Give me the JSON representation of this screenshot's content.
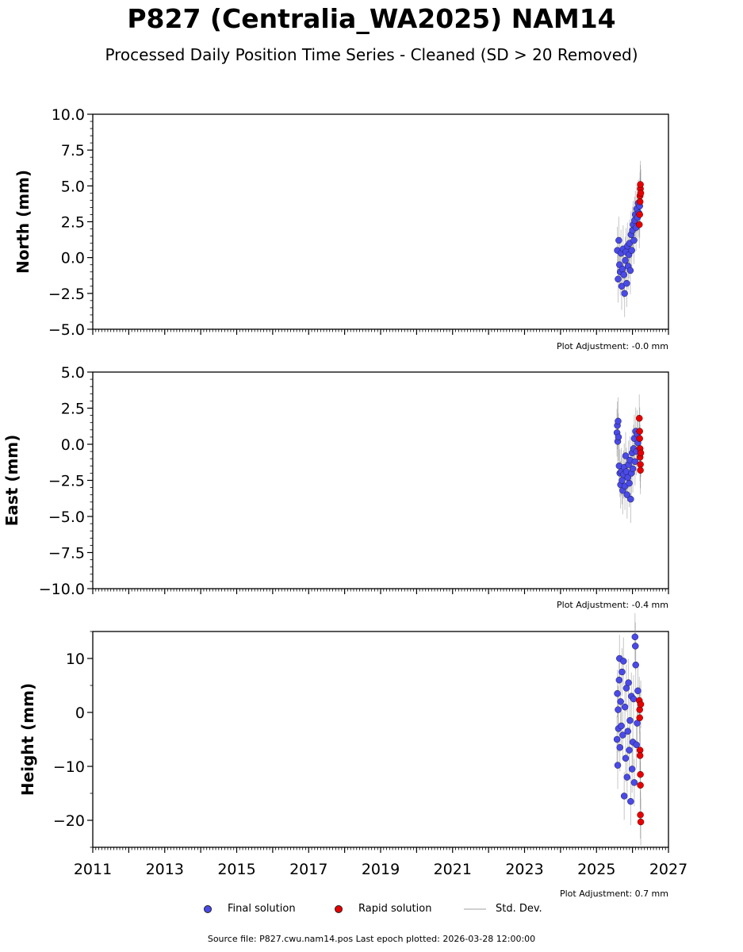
{
  "title": "P827 (Centralia_WA2025) NAM14",
  "subtitle": "Processed Daily Position Time Series - Cleaned (SD > 20 Removed)",
  "legend": {
    "final": "Final solution",
    "rapid": "Rapid solution",
    "std": "Std. Dev."
  },
  "footer": "Source file: P827.cwu.nam14.pos  Last epoch plotted: 2026-03-28 12:00:00",
  "colors": {
    "final": "#4a4ae8",
    "rapid": "#e80000",
    "std": "#808080"
  },
  "chart_data": [
    {
      "type": "scatter",
      "ylabel": "North (mm)",
      "adjustment": "Plot Adjustment: -0.0 mm",
      "xlim": [
        2011,
        2027
      ],
      "ylim": [
        -5,
        10
      ],
      "yticks": [
        -5.0,
        -2.5,
        0.0,
        2.5,
        5.0,
        7.5,
        10.0
      ],
      "ytick_labels": [
        "−5.0",
        "−2.5",
        "0.0",
        "2.5",
        "5.0",
        "7.5",
        "10.0"
      ],
      "yminor_step": 0.5,
      "final": [
        [
          2025.58,
          0.5
        ],
        [
          2025.6,
          -1.5
        ],
        [
          2025.62,
          1.2
        ],
        [
          2025.64,
          -0.5
        ],
        [
          2025.66,
          -1.0
        ],
        [
          2025.68,
          0.3
        ],
        [
          2025.7,
          -2.0
        ],
        [
          2025.72,
          -0.8
        ],
        [
          2025.74,
          0.6
        ],
        [
          2025.76,
          -1.2
        ],
        [
          2025.78,
          -2.5
        ],
        [
          2025.8,
          -0.2
        ],
        [
          2025.82,
          0.4
        ],
        [
          2025.84,
          -1.8
        ],
        [
          2025.86,
          0.8
        ],
        [
          2025.88,
          -0.6
        ],
        [
          2025.9,
          0.2
        ],
        [
          2025.92,
          1.0
        ],
        [
          2025.94,
          -0.9
        ],
        [
          2025.96,
          1.6
        ],
        [
          2025.98,
          0.5
        ],
        [
          2026.0,
          1.9
        ],
        [
          2026.02,
          2.3
        ],
        [
          2026.04,
          1.2
        ],
        [
          2026.06,
          2.6
        ],
        [
          2026.08,
          3.0
        ],
        [
          2026.1,
          2.1
        ],
        [
          2026.12,
          3.4
        ],
        [
          2026.14,
          2.8
        ],
        [
          2026.16,
          3.8
        ],
        [
          2026.18,
          3.1
        ],
        [
          2026.2,
          3.6
        ]
      ],
      "rapid": [
        [
          2026.19,
          2.3
        ],
        [
          2026.2,
          3.0
        ],
        [
          2026.21,
          3.9
        ],
        [
          2026.21,
          4.3
        ],
        [
          2026.22,
          4.8
        ],
        [
          2026.22,
          5.1
        ],
        [
          2026.23,
          4.5
        ]
      ]
    },
    {
      "type": "scatter",
      "ylabel": "East (mm)",
      "adjustment": "Plot Adjustment: -0.4 mm",
      "xlim": [
        2011,
        2027
      ],
      "ylim": [
        -10,
        5
      ],
      "yticks": [
        -10.0,
        -7.5,
        -5.0,
        -2.5,
        0.0,
        2.5,
        5.0
      ],
      "ytick_labels": [
        "−10.0",
        "−7.5",
        "−5.0",
        "−2.5",
        "0.0",
        "2.5",
        "5.0"
      ],
      "yminor_step": 0.5,
      "final": [
        [
          2025.57,
          0.8
        ],
        [
          2025.58,
          1.3
        ],
        [
          2025.59,
          0.2
        ],
        [
          2025.6,
          1.6
        ],
        [
          2025.61,
          0.5
        ],
        [
          2025.63,
          -1.5
        ],
        [
          2025.65,
          -2.0
        ],
        [
          2025.67,
          -2.8
        ],
        [
          2025.69,
          -1.9
        ],
        [
          2025.71,
          -2.5
        ],
        [
          2025.73,
          -3.2
        ],
        [
          2025.75,
          -2.1
        ],
        [
          2025.77,
          -1.6
        ],
        [
          2025.79,
          -2.9
        ],
        [
          2025.81,
          -0.8
        ],
        [
          2025.83,
          -1.9
        ],
        [
          2025.85,
          -3.5
        ],
        [
          2025.87,
          -2.3
        ],
        [
          2025.89,
          -1.4
        ],
        [
          2025.91,
          -2.7
        ],
        [
          2025.93,
          -1.1
        ],
        [
          2025.95,
          -3.8
        ],
        [
          2025.97,
          -2.0
        ],
        [
          2025.99,
          -0.6
        ],
        [
          2026.01,
          -1.7
        ],
        [
          2026.03,
          -0.3
        ],
        [
          2026.05,
          0.4
        ],
        [
          2026.07,
          -1.2
        ],
        [
          2026.09,
          0.9
        ],
        [
          2026.11,
          -0.5
        ],
        [
          2026.13,
          0.7
        ],
        [
          2026.15,
          0.1
        ]
      ],
      "rapid": [
        [
          2026.19,
          1.8
        ],
        [
          2026.2,
          0.9
        ],
        [
          2026.2,
          0.4
        ],
        [
          2026.21,
          -0.3
        ],
        [
          2026.21,
          -0.9
        ],
        [
          2026.22,
          -1.4
        ],
        [
          2026.22,
          -1.8
        ],
        [
          2026.23,
          -0.6
        ]
      ]
    },
    {
      "type": "scatter",
      "ylabel": "Height (mm)",
      "adjustment": "Plot Adjustment: 0.7 mm",
      "xlim": [
        2011,
        2027
      ],
      "ylim": [
        -25,
        15
      ],
      "yticks": [
        -20,
        -10,
        0,
        10
      ],
      "ytick_labels": [
        "−20",
        "−10",
        "0",
        "10"
      ],
      "yminor_step": 5,
      "xticks": [
        2011,
        2013,
        2015,
        2017,
        2019,
        2021,
        2023,
        2025,
        2027
      ],
      "xtick_labels": [
        "2011",
        "2013",
        "2015",
        "2017",
        "2019",
        "2021",
        "2023",
        "2025",
        "2027"
      ],
      "final": [
        [
          2025.57,
          -5.0
        ],
        [
          2025.58,
          3.5
        ],
        [
          2025.59,
          -9.8
        ],
        [
          2025.6,
          0.5
        ],
        [
          2025.61,
          -3.0
        ],
        [
          2025.63,
          6.0
        ],
        [
          2025.64,
          10.0
        ],
        [
          2025.65,
          -6.5
        ],
        [
          2025.67,
          2.0
        ],
        [
          2025.69,
          -2.5
        ],
        [
          2025.71,
          7.5
        ],
        [
          2025.73,
          -4.2
        ],
        [
          2025.75,
          9.5
        ],
        [
          2025.77,
          -15.5
        ],
        [
          2025.79,
          1.0
        ],
        [
          2025.81,
          -8.5
        ],
        [
          2025.83,
          4.5
        ],
        [
          2025.85,
          -12.0
        ],
        [
          2025.87,
          -3.5
        ],
        [
          2025.89,
          5.5
        ],
        [
          2025.91,
          -7.0
        ],
        [
          2025.93,
          -1.5
        ],
        [
          2025.95,
          -16.5
        ],
        [
          2025.97,
          3.0
        ],
        [
          2025.99,
          -10.5
        ],
        [
          2026.01,
          -5.5
        ],
        [
          2026.03,
          2.5
        ],
        [
          2026.05,
          -13.0
        ],
        [
          2026.07,
          14.0
        ],
        [
          2026.08,
          12.3
        ],
        [
          2026.09,
          8.8
        ],
        [
          2026.11,
          -6.0
        ],
        [
          2026.13,
          -2.0
        ],
        [
          2026.15,
          4.0
        ]
      ],
      "rapid": [
        [
          2026.19,
          2.2
        ],
        [
          2026.2,
          0.5
        ],
        [
          2026.2,
          -1.0
        ],
        [
          2026.21,
          -7.0
        ],
        [
          2026.21,
          -8.0
        ],
        [
          2026.22,
          -11.5
        ],
        [
          2026.22,
          -13.5
        ],
        [
          2026.22,
          -19.0
        ],
        [
          2026.23,
          -20.3
        ],
        [
          2026.23,
          1.5
        ]
      ]
    }
  ]
}
